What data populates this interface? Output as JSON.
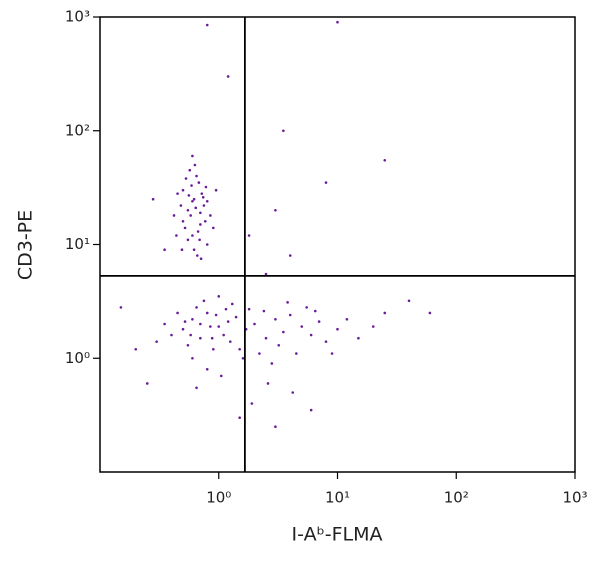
{
  "chart_data": {
    "type": "scatter",
    "xlabel": "I-Aᵇ-FLMA",
    "ylabel": "CD3-PE",
    "xscale": "log",
    "yscale": "log",
    "xlim": [
      0.1,
      1000
    ],
    "ylim": [
      0.1,
      1000
    ],
    "xticks": [
      {
        "value": 1,
        "label": "10⁰"
      },
      {
        "value": 10,
        "label": "10¹"
      },
      {
        "value": 100,
        "label": "10²"
      },
      {
        "value": 1000,
        "label": "10³"
      }
    ],
    "yticks": [
      {
        "value": 1,
        "label": "10⁰"
      },
      {
        "value": 10,
        "label": "10¹"
      },
      {
        "value": 100,
        "label": "10²"
      },
      {
        "value": 1000,
        "label": "10³"
      }
    ],
    "gates": {
      "x": 1.66,
      "y": 5.3
    },
    "color": "#6a1b9a",
    "x": [
      0.55,
      0.62,
      0.7,
      0.5,
      0.6,
      0.75,
      0.68,
      0.58,
      0.45,
      0.8,
      0.65,
      0.52,
      0.72,
      0.62,
      0.48,
      0.85,
      0.57,
      0.66,
      0.78,
      0.5,
      0.6,
      0.7,
      0.44,
      0.9,
      0.63,
      0.55,
      0.74,
      0.59,
      0.67,
      0.53,
      0.8,
      0.42,
      0.71,
      0.6,
      0.95,
      0.49,
      0.64,
      0.77,
      0.56,
      0.69,
      0.5,
      0.6,
      0.7,
      0.8,
      1.0,
      1.2,
      0.55,
      0.65,
      0.9,
      1.1,
      1.4,
      1.7,
      2.0,
      2.5,
      3.0,
      3.5,
      4.0,
      5.0,
      6.0,
      7.0,
      8.0,
      10,
      12,
      15,
      0.45,
      0.4,
      0.35,
      0.75,
      1.3,
      1.8,
      2.2,
      2.8,
      3.2,
      4.5,
      5.5,
      0.6,
      0.8,
      1.0,
      1.5,
      0.7,
      0.95,
      1.25,
      0.58,
      0.85,
      1.6,
      2.4,
      3.8,
      6.5,
      9,
      20,
      25,
      0.3,
      1.05,
      2.6,
      4.2,
      1.9,
      0.65,
      1.15,
      0.52,
      0.88,
      0.25,
      0.2,
      0.15,
      1.5,
      3.0,
      6,
      2.5,
      4,
      1.8,
      3,
      8,
      40,
      60,
      25,
      10,
      3.5,
      0.8,
      1.2,
      0.35,
      0.28
    ],
    "y": [
      20,
      25,
      15,
      30,
      12,
      22,
      35,
      18,
      28,
      10,
      40,
      14,
      28,
      9,
      22,
      18,
      45,
      8,
      32,
      16,
      24,
      19,
      12,
      14,
      50,
      11,
      26,
      33,
      13,
      38,
      24,
      18,
      7.5,
      60,
      30,
      9,
      21,
      16,
      27,
      11,
      1.8,
      2.2,
      1.5,
      2.5,
      1.9,
      2.1,
      1.3,
      2.8,
      1.2,
      1.6,
      2.3,
      1.8,
      2.0,
      1.5,
      2.2,
      1.7,
      2.4,
      1.9,
      1.6,
      2.1,
      1.4,
      1.8,
      2.2,
      1.5,
      2.5,
      1.6,
      2.0,
      3.2,
      3.0,
      2.7,
      1.1,
      0.9,
      1.3,
      1.1,
      2.8,
      1.0,
      0.8,
      3.5,
      1.2,
      2.0,
      2.4,
      1.4,
      1.6,
      1.9,
      1.0,
      2.6,
      3.1,
      2.6,
      1.1,
      1.9,
      2.5,
      1.4,
      0.7,
      0.6,
      0.5,
      0.4,
      0.55,
      2.7,
      2.1,
      1.5,
      0.6,
      1.2,
      2.8,
      0.3,
      0.25,
      0.35,
      5.5,
      8,
      12,
      20,
      35,
      3.2,
      2.5,
      55,
      900,
      100,
      850,
      300,
      9,
      25
    ]
  }
}
